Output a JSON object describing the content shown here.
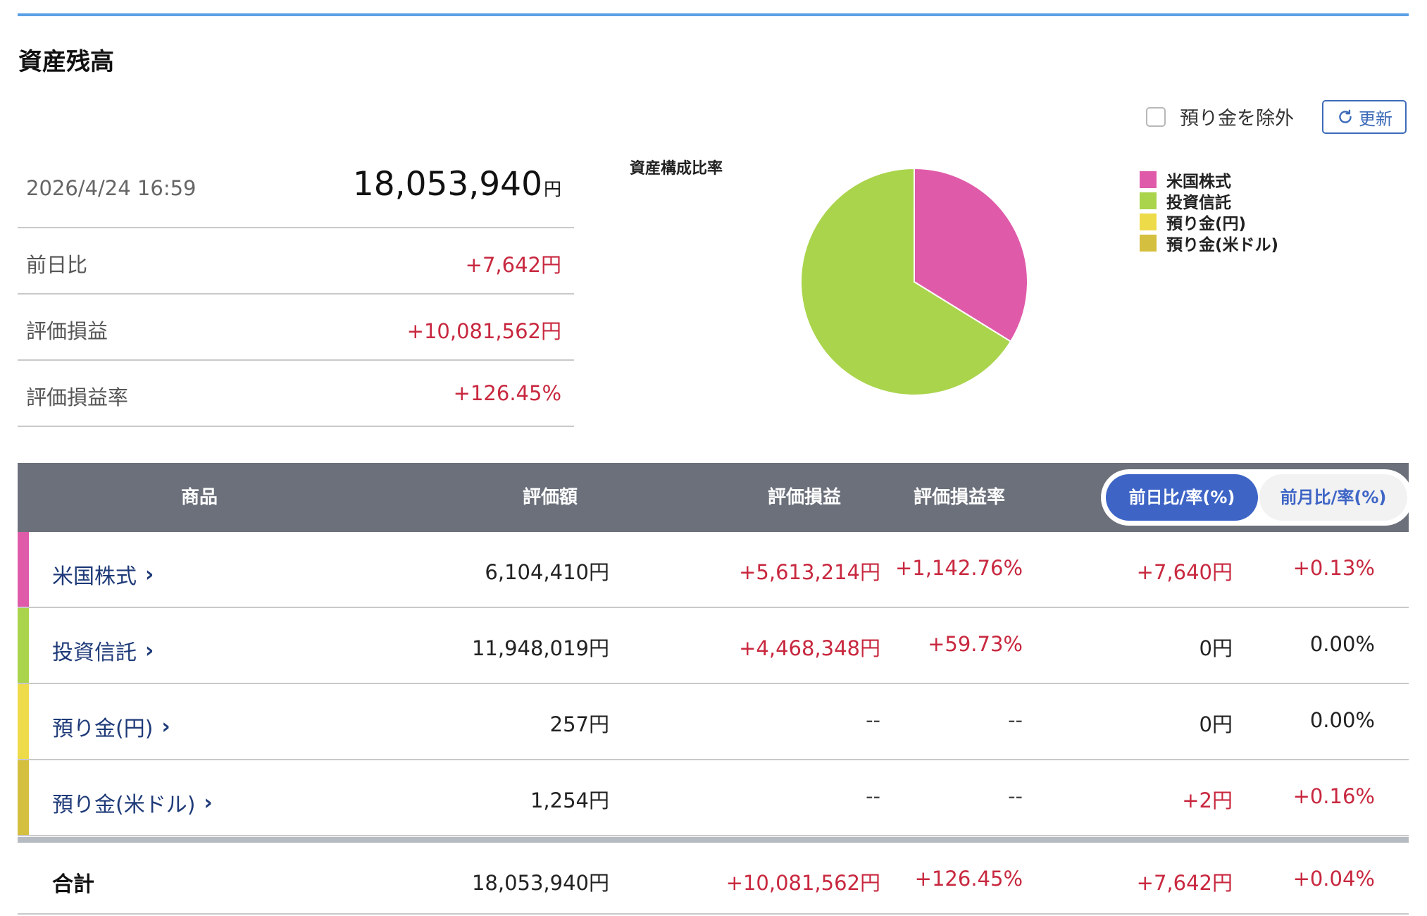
{
  "title": "資産残高",
  "controls": {
    "exclude_label": "預り金を除外",
    "refresh_label": "更新"
  },
  "summary": {
    "datetime": "2026/4/24 16:59",
    "total": "18,053,940",
    "total_unit": "円",
    "rows": [
      {
        "label": "前日比",
        "value": "+7,642円"
      },
      {
        "label": "評価損益",
        "value": "+10,081,562円"
      },
      {
        "label": "評価損益率",
        "value": "+126.45%"
      }
    ]
  },
  "chart": {
    "title": "資産構成比率"
  },
  "chart_data": {
    "type": "pie",
    "title": "資産構成比率",
    "categories": [
      "米国株式",
      "投資信託",
      "預り金(円)",
      "預り金(米ドル)"
    ],
    "values": [
      6104410,
      11948019,
      257,
      1254
    ],
    "colors": [
      "#e05aaa",
      "#aad44b",
      "#eedb4a",
      "#d4bf3f"
    ],
    "legend_position": "right"
  },
  "table": {
    "headers": {
      "product": "商品",
      "valuation": "評価額",
      "pl": "評価損益",
      "pl_rate": "評価損益率"
    },
    "toggle": {
      "active": "前日比/率(%)",
      "inactive": "前月比/率(%)"
    },
    "rows": [
      {
        "name": "米国株式",
        "color": "#e05aaa",
        "valuation": "6,104,410円",
        "pl": "+5,613,214円",
        "pl_rate": "+1,142.76%",
        "diff": "+7,640円",
        "diff_rate": "+0.13%"
      },
      {
        "name": "投資信託",
        "color": "#aad44b",
        "valuation": "11,948,019円",
        "pl": "+4,468,348円",
        "pl_rate": "+59.73%",
        "diff": "0円",
        "diff_rate": "0.00%"
      },
      {
        "name": "預り金(円)",
        "color": "#eedb4a",
        "valuation": "257円",
        "pl": "--",
        "pl_rate": "--",
        "diff": "0円",
        "diff_rate": "0.00%"
      },
      {
        "name": "預り金(米ドル)",
        "color": "#d4bf3f",
        "valuation": "1,254円",
        "pl": "--",
        "pl_rate": "--",
        "diff": "+2円",
        "diff_rate": "+0.16%"
      }
    ],
    "total": {
      "label": "合計",
      "valuation": "18,053,940円",
      "pl": "+10,081,562円",
      "pl_rate": "+126.45%",
      "diff": "+7,642円",
      "diff_rate": "+0.04%"
    }
  }
}
